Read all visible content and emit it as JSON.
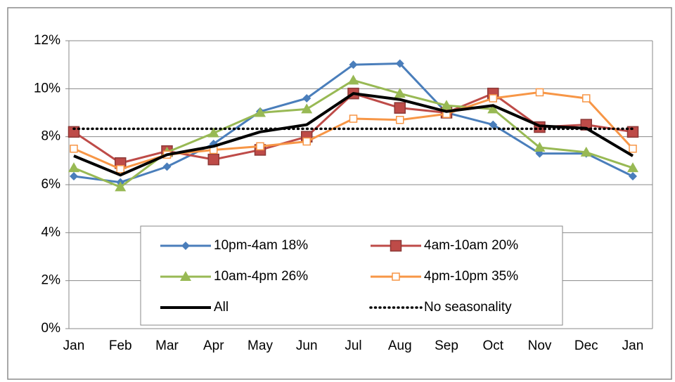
{
  "chart_data": {
    "type": "line",
    "categories": [
      "Jan",
      "Feb",
      "Mar",
      "Apr",
      "May",
      "Jun",
      "Jul",
      "Aug",
      "Sep",
      "Oct",
      "Nov",
      "Dec",
      "Jan"
    ],
    "ylim": [
      0,
      12
    ],
    "yticks": [
      {
        "value": 0,
        "label": "0%"
      },
      {
        "value": 2,
        "label": "2%"
      },
      {
        "value": 4,
        "label": "4%"
      },
      {
        "value": 6,
        "label": "6%"
      },
      {
        "value": 8,
        "label": "8%"
      },
      {
        "value": 10,
        "label": "10%"
      },
      {
        "value": 12,
        "label": "12%"
      }
    ],
    "grid": true,
    "series": [
      {
        "name": "10pm-4am 18%",
        "color": "#4a7ebb",
        "marker": "diamond",
        "dash": "solid",
        "values": [
          6.35,
          6.1,
          6.75,
          7.7,
          9.05,
          9.6,
          11.0,
          11.05,
          9.0,
          8.5,
          7.3,
          7.3,
          6.35
        ]
      },
      {
        "name": "4am-10am 20%",
        "color": "#be4b48",
        "marker": "square",
        "dash": "solid",
        "values": [
          8.2,
          6.9,
          7.4,
          7.05,
          7.45,
          8.0,
          9.8,
          9.2,
          9.0,
          9.8,
          8.4,
          8.5,
          8.2
        ]
      },
      {
        "name": "10am-4pm 26%",
        "color": "#98b954",
        "marker": "triangle",
        "dash": "solid",
        "values": [
          6.7,
          5.9,
          7.35,
          8.15,
          9.0,
          9.15,
          10.35,
          9.8,
          9.3,
          9.15,
          7.55,
          7.35,
          6.7
        ]
      },
      {
        "name": "4pm-10pm 35%",
        "color": "#f79646",
        "marker": "hollow-square",
        "dash": "solid",
        "values": [
          7.5,
          6.65,
          7.25,
          7.45,
          7.6,
          7.8,
          8.75,
          8.7,
          8.95,
          9.6,
          9.85,
          9.6,
          7.5
        ]
      },
      {
        "name": "All",
        "color": "#000000",
        "marker": "none",
        "dash": "solid",
        "values": [
          7.2,
          6.4,
          7.25,
          7.6,
          8.2,
          8.5,
          9.8,
          9.55,
          9.05,
          9.3,
          8.45,
          8.35,
          7.2
        ]
      },
      {
        "name": "No seasonality",
        "color": "#000000",
        "marker": "none",
        "dash": "dotted",
        "values": [
          8.33,
          8.33,
          8.33,
          8.33,
          8.33,
          8.33,
          8.33,
          8.33,
          8.33,
          8.33,
          8.33,
          8.33,
          8.33
        ]
      }
    ]
  }
}
